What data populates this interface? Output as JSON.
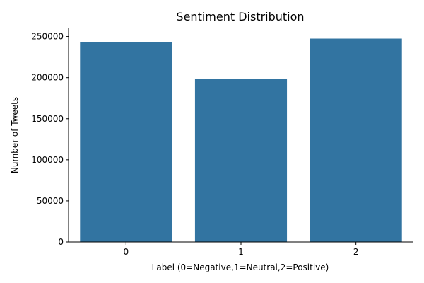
{
  "chart_data": {
    "type": "bar",
    "title": "Sentiment Distribution",
    "xlabel": "Label (0=Negative,1=Neutral,2=Positive)",
    "ylabel": "Number of Tweets",
    "categories": [
      "0",
      "1",
      "2"
    ],
    "values": [
      243000,
      198500,
      247500
    ],
    "ylim": [
      0,
      260000
    ],
    "yticks": [
      0,
      50000,
      100000,
      150000,
      200000,
      250000
    ],
    "ytick_labels": [
      "0",
      "50000",
      "100000",
      "150000",
      "200000",
      "250000"
    ],
    "bar_color": "#3274a1",
    "grid": false,
    "legend": "none"
  }
}
